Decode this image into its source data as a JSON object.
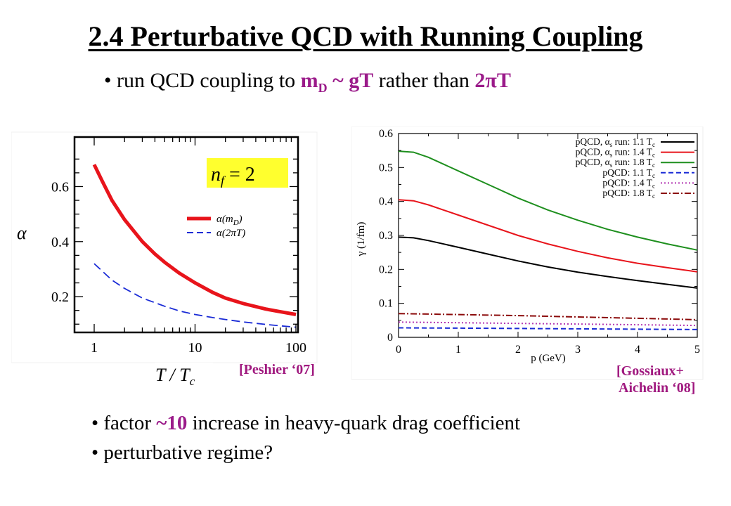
{
  "title": "2.4 Perturbative QCD with Running Coupling",
  "bullet_top": {
    "prefix": "• run QCD coupling to ",
    "hl1": "m",
    "hl1_sub": "D",
    "hl2": " ~ gT",
    "middle": " rather than ",
    "hl3": "2πT"
  },
  "bullets_bottom": [
    {
      "prefix": "• factor ",
      "hl": "~10",
      "suffix": " increase in heavy-quark drag coefficient"
    },
    {
      "prefix": "• perturbative regime?",
      "hl": "",
      "suffix": ""
    }
  ],
  "citations": {
    "left": "[Peshier ‘07]",
    "right_line1": "[Gossiaux+",
    "right_line2": "Aichelin ‘08]"
  },
  "chart_data": [
    {
      "type": "line",
      "xscale": "log",
      "xlim": [
        1,
        100
      ],
      "ylim": [
        0.07,
        0.78
      ],
      "xlabel": "T / T",
      "xlabel_sub": "c",
      "ylabel": "α",
      "xticks": [
        1,
        10,
        100
      ],
      "yticks": [
        0.2,
        0.4,
        0.6
      ],
      "annotation": "n",
      "annotation_sub": "f",
      "annotation_rest": " = 2",
      "legend_position": "right",
      "series": [
        {
          "name": "α(m",
          "name_sub": "D",
          "name_end": ")",
          "color": "#e8141b",
          "style": "solid",
          "x": [
            1,
            1.2,
            1.5,
            2,
            3,
            4,
            5,
            7,
            10,
            15,
            20,
            30,
            50,
            70,
            100
          ],
          "y": [
            0.68,
            0.62,
            0.55,
            0.48,
            0.4,
            0.355,
            0.325,
            0.285,
            0.25,
            0.215,
            0.195,
            0.175,
            0.155,
            0.145,
            0.135
          ]
        },
        {
          "name": "α(2πT)",
          "color": "#1a2bd6",
          "style": "dashed",
          "x": [
            1,
            1.5,
            2,
            3,
            5,
            7,
            10,
            15,
            20,
            30,
            50,
            70,
            100
          ],
          "y": [
            0.32,
            0.26,
            0.23,
            0.195,
            0.165,
            0.148,
            0.135,
            0.124,
            0.117,
            0.108,
            0.099,
            0.094,
            0.089
          ]
        }
      ]
    },
    {
      "type": "line",
      "xlim": [
        0,
        5
      ],
      "ylim": [
        0,
        0.6
      ],
      "xlabel": "p (GeV)",
      "ylabel": "γ (1/fm)",
      "xticks": [
        0,
        1,
        2,
        3,
        4,
        5
      ],
      "yticks": [
        0,
        0.1,
        0.2,
        0.3,
        0.4,
        0.5,
        0.6
      ],
      "legend_position": "top-right",
      "series": [
        {
          "name": "pQCD, α",
          "name_sub": "s",
          "name_mid": " run: 1.1 T",
          "name_sub2": "c",
          "color": "#000000",
          "style": "solid",
          "x": [
            0,
            0.25,
            0.5,
            1,
            1.5,
            2,
            2.5,
            3,
            3.5,
            4,
            4.5,
            5
          ],
          "y": [
            0.295,
            0.293,
            0.285,
            0.265,
            0.245,
            0.225,
            0.207,
            0.192,
            0.179,
            0.167,
            0.156,
            0.145
          ]
        },
        {
          "name": "pQCD, α",
          "name_sub": "s",
          "name_mid": " run: 1.4 T",
          "name_sub2": "c",
          "color": "#e8141b",
          "style": "solid",
          "x": [
            0,
            0.25,
            0.5,
            1,
            1.5,
            2,
            2.5,
            3,
            3.5,
            4,
            4.5,
            5
          ],
          "y": [
            0.405,
            0.402,
            0.39,
            0.36,
            0.33,
            0.3,
            0.275,
            0.253,
            0.234,
            0.218,
            0.205,
            0.193
          ]
        },
        {
          "name": "pQCD, α",
          "name_sub": "s",
          "name_mid": " run: 1.8 T",
          "name_sub2": "c",
          "color": "#1e8f1e",
          "style": "solid",
          "x": [
            0,
            0.25,
            0.5,
            1,
            1.5,
            2,
            2.5,
            3,
            3.5,
            4,
            4.5,
            5
          ],
          "y": [
            0.548,
            0.545,
            0.53,
            0.49,
            0.45,
            0.41,
            0.375,
            0.345,
            0.318,
            0.295,
            0.275,
            0.257
          ]
        },
        {
          "name": "pQCD: 1.1 T",
          "name_sub2": "c",
          "color": "#1a2bd6",
          "style": "dashed",
          "x": [
            0,
            1,
            2,
            3,
            4,
            5
          ],
          "y": [
            0.028,
            0.027,
            0.026,
            0.025,
            0.024,
            0.023
          ]
        },
        {
          "name": "pQCD: 1.4 T",
          "name_sub2": "c",
          "color": "#b43ab4",
          "style": "dotted",
          "x": [
            0,
            1,
            2,
            3,
            4,
            5
          ],
          "y": [
            0.045,
            0.043,
            0.041,
            0.039,
            0.037,
            0.035
          ]
        },
        {
          "name": "pQCD: 1.8 T",
          "name_sub2": "c",
          "color": "#8b0a0a",
          "style": "dashdot",
          "x": [
            0,
            1,
            2,
            3,
            4,
            5
          ],
          "y": [
            0.07,
            0.067,
            0.064,
            0.06,
            0.056,
            0.052
          ]
        }
      ]
    }
  ]
}
